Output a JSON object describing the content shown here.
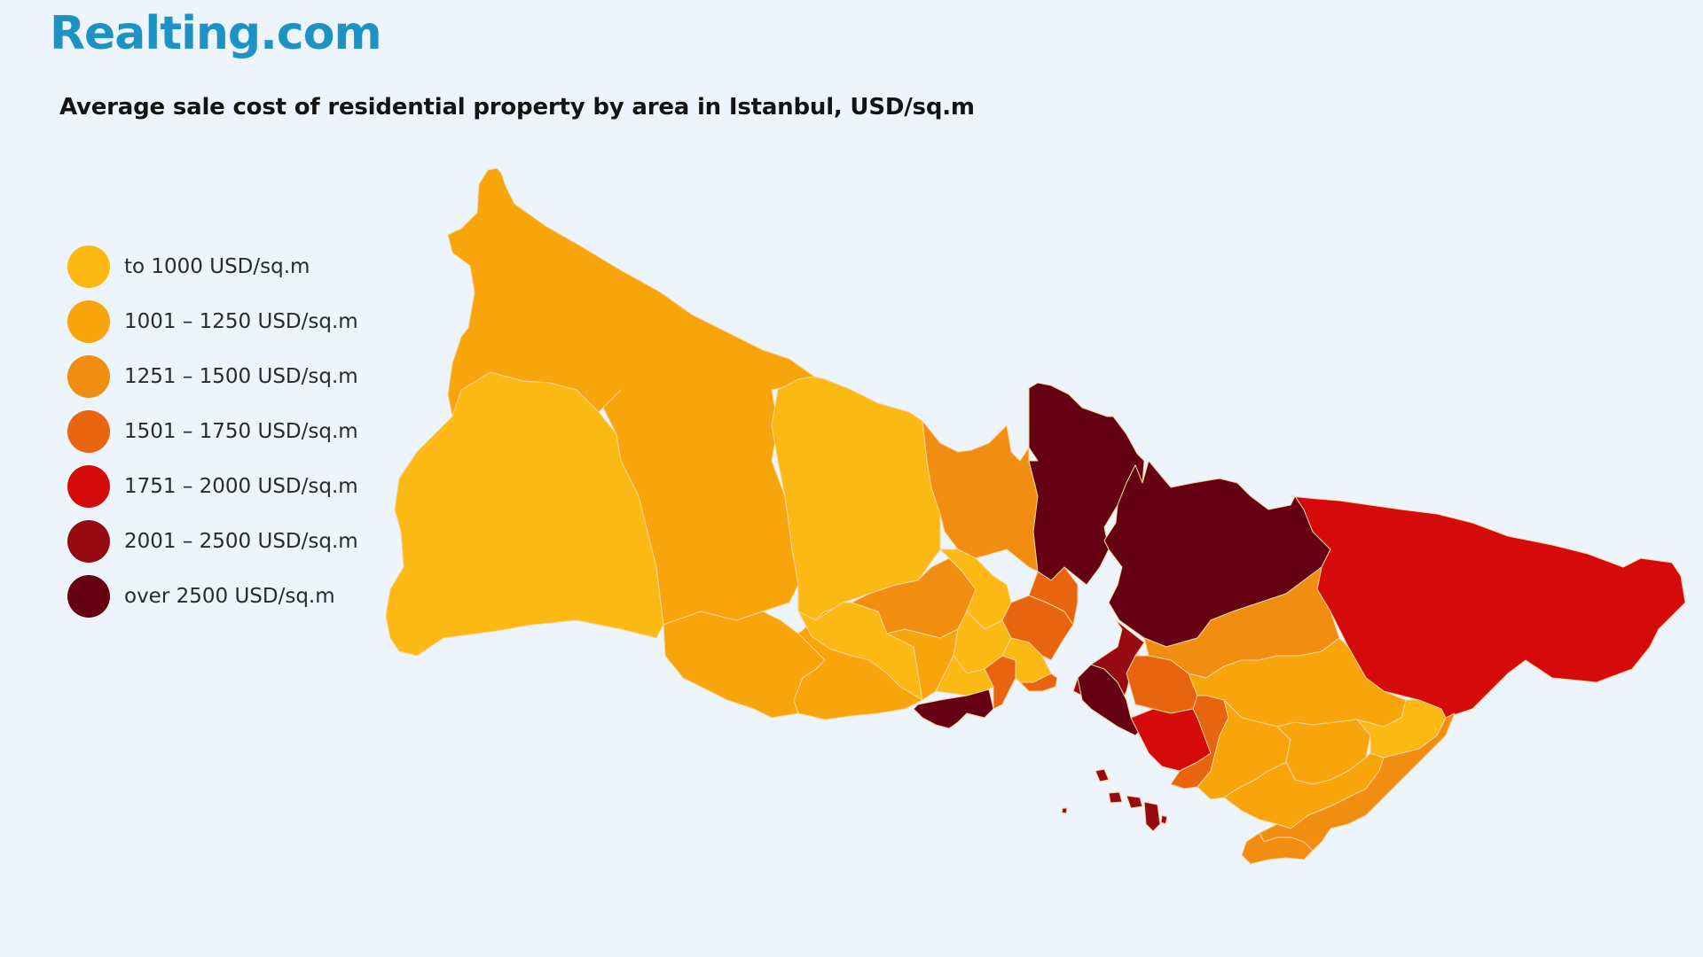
{
  "brand": {
    "logo_text": "Realting.com",
    "color": "#1d93c3"
  },
  "title": "Average sale cost of residential property by area in Istanbul, USD/sq.m",
  "legend": [
    {
      "label": "to 1000 USD/sq.m",
      "color": "#fdb913"
    },
    {
      "label": "1001 – 1250 USD/sq.m",
      "color": "#f8a50b"
    },
    {
      "label": "1251 – 1500 USD/sq.m",
      "color": "#f18d10"
    },
    {
      "label": "1501 – 1750 USD/sq.m",
      "color": "#e8640f"
    },
    {
      "label": "1751 – 2000 USD/sq.m",
      "color": "#d50a0a"
    },
    {
      "label": "2001 – 2500 USD/sq.m",
      "color": "#960b13"
    },
    {
      "label": "over 2500 USD/sq.m",
      "color": "#660013"
    }
  ],
  "map": {
    "background": "#eef4fb",
    "border_color": "#f6d6a0",
    "regions": [
      {
        "name": "catalca",
        "category": 0
      },
      {
        "name": "arnavutkoy",
        "category": 1
      },
      {
        "name": "silivri-coast",
        "category": 1
      },
      {
        "name": "buyukcekmece",
        "category": 1
      },
      {
        "name": "eyup",
        "category": 0
      },
      {
        "name": "sariyer",
        "category": 2
      },
      {
        "name": "besiktas",
        "category": 6
      },
      {
        "name": "beykoz",
        "category": 6
      },
      {
        "name": "sile",
        "category": 4
      },
      {
        "name": "esenyurt",
        "category": 0
      },
      {
        "name": "basaksehir",
        "category": 2
      },
      {
        "name": "kucukcekmece",
        "category": 1
      },
      {
        "name": "gaziosmanpasa",
        "category": 0
      },
      {
        "name": "bagcilar",
        "category": 0
      },
      {
        "name": "zeytinburnu",
        "category": 0
      },
      {
        "name": "sisli",
        "category": 3
      },
      {
        "name": "beyoglu",
        "category": 3
      },
      {
        "name": "fatih",
        "category": 0
      },
      {
        "name": "bakirkoy",
        "category": 3
      },
      {
        "name": "bakirkoy-coast",
        "category": 6
      },
      {
        "name": "uskudar",
        "category": 5
      },
      {
        "name": "kadikoy-north",
        "category": 6
      },
      {
        "name": "umraniye",
        "category": 2
      },
      {
        "name": "atasehir",
        "category": 3
      },
      {
        "name": "cekmekoy",
        "category": 1
      },
      {
        "name": "kadikoy",
        "category": 4
      },
      {
        "name": "maltepe",
        "category": 3
      },
      {
        "name": "kartal",
        "category": 1
      },
      {
        "name": "sultanbeyli",
        "category": 0
      },
      {
        "name": "pendik",
        "category": 1
      },
      {
        "name": "tuzla",
        "category": 2
      },
      {
        "name": "sancaktepe",
        "category": 1
      },
      {
        "name": "adalar",
        "category": 5
      }
    ]
  }
}
